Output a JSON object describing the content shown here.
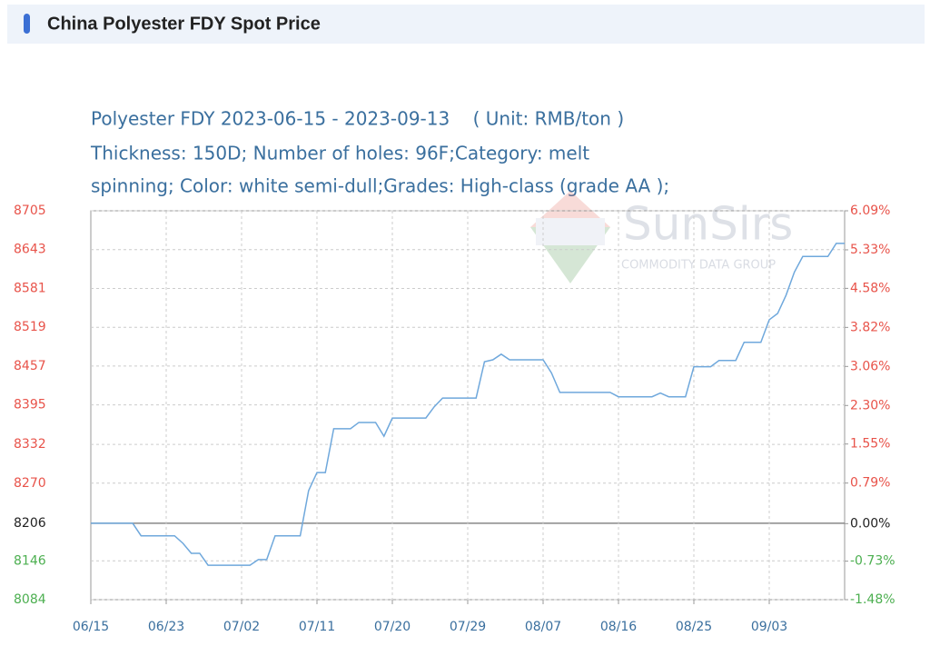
{
  "header": {
    "title": "China Polyester FDY Spot Price"
  },
  "chart_data": {
    "type": "line",
    "title": "Polyester FDY 2023-06-15 - 2023-09-13    ( Unit: RMB/ton )",
    "subtitle": [
      "Thickness: 150D; Number of holes: 96F;Category: melt",
      "spinning; Color: white semi-dull;Grades: High-class (grade AA );"
    ],
    "watermark": {
      "text": "SunSirs",
      "subtext": "COMMODITY DATA GROUP"
    },
    "categories": [
      "06/15",
      null,
      null,
      null,
      null,
      null,
      null,
      null,
      null,
      "06/23",
      null,
      null,
      null,
      null,
      null,
      null,
      null,
      null,
      "07/02",
      null,
      null,
      null,
      null,
      null,
      null,
      null,
      null,
      "07/11",
      null,
      null,
      null,
      null,
      null,
      null,
      null,
      null,
      "07/20",
      null,
      null,
      null,
      null,
      null,
      null,
      null,
      null,
      "07/29",
      null,
      null,
      null,
      null,
      null,
      null,
      null,
      null,
      "08/07",
      null,
      null,
      null,
      null,
      null,
      null,
      null,
      null,
      "08/16",
      null,
      null,
      null,
      null,
      null,
      null,
      null,
      null,
      "08/25",
      null,
      null,
      null,
      null,
      null,
      null,
      null,
      null,
      "09/03",
      null,
      null,
      null,
      null,
      null,
      null,
      null,
      null,
      null
    ],
    "series": [
      {
        "name": "Polyester FDY",
        "color": "#6fa8dc",
        "values": [
          8206,
          8206,
          8206,
          8206,
          8206,
          8206,
          8186,
          8186,
          8186,
          8186,
          8186,
          8174,
          8158,
          8158,
          8139,
          8139,
          8139,
          8139,
          8139,
          8139,
          8148,
          8148,
          8186,
          8186,
          8186,
          8186,
          8258,
          8287,
          8287,
          8357,
          8357,
          8357,
          8367,
          8367,
          8367,
          8345,
          8374,
          8374,
          8374,
          8374,
          8374,
          8392,
          8406,
          8406,
          8406,
          8406,
          8406,
          8464,
          8467,
          8476,
          8467,
          8467,
          8467,
          8467,
          8467,
          8446,
          8415,
          8415,
          8415,
          8415,
          8415,
          8415,
          8415,
          8408,
          8408,
          8408,
          8408,
          8408,
          8414,
          8408,
          8408,
          8408,
          8456,
          8456,
          8456,
          8466,
          8466,
          8466,
          8495,
          8495,
          8495,
          8531,
          8541,
          8570,
          8607,
          8632,
          8632,
          8632,
          8632,
          8653,
          8653
        ]
      }
    ],
    "ylim": [
      8084,
      8705
    ],
    "yticks": [
      8084,
      8146,
      8206,
      8270,
      8332,
      8395,
      8457,
      8519,
      8581,
      8643,
      8705
    ],
    "y2lim": [
      -1.48,
      6.09
    ],
    "y2ticks": [
      {
        "value": -1.48,
        "label": "-1.48%"
      },
      {
        "value": -0.73,
        "label": "-0.73%"
      },
      {
        "value": 0,
        "label": "0.00%"
      },
      {
        "value": 0.79,
        "label": "0.79%"
      },
      {
        "value": 1.55,
        "label": "1.55%"
      },
      {
        "value": 2.3,
        "label": "2.30%"
      },
      {
        "value": 3.06,
        "label": "3.06%"
      },
      {
        "value": 3.82,
        "label": "3.82%"
      },
      {
        "value": 4.58,
        "label": "4.58%"
      },
      {
        "value": 5.33,
        "label": "5.33%"
      },
      {
        "value": 6.09,
        "label": "6.09%"
      }
    ],
    "grid": true,
    "up_color": "#e8534a",
    "down_color": "#4caf50"
  }
}
